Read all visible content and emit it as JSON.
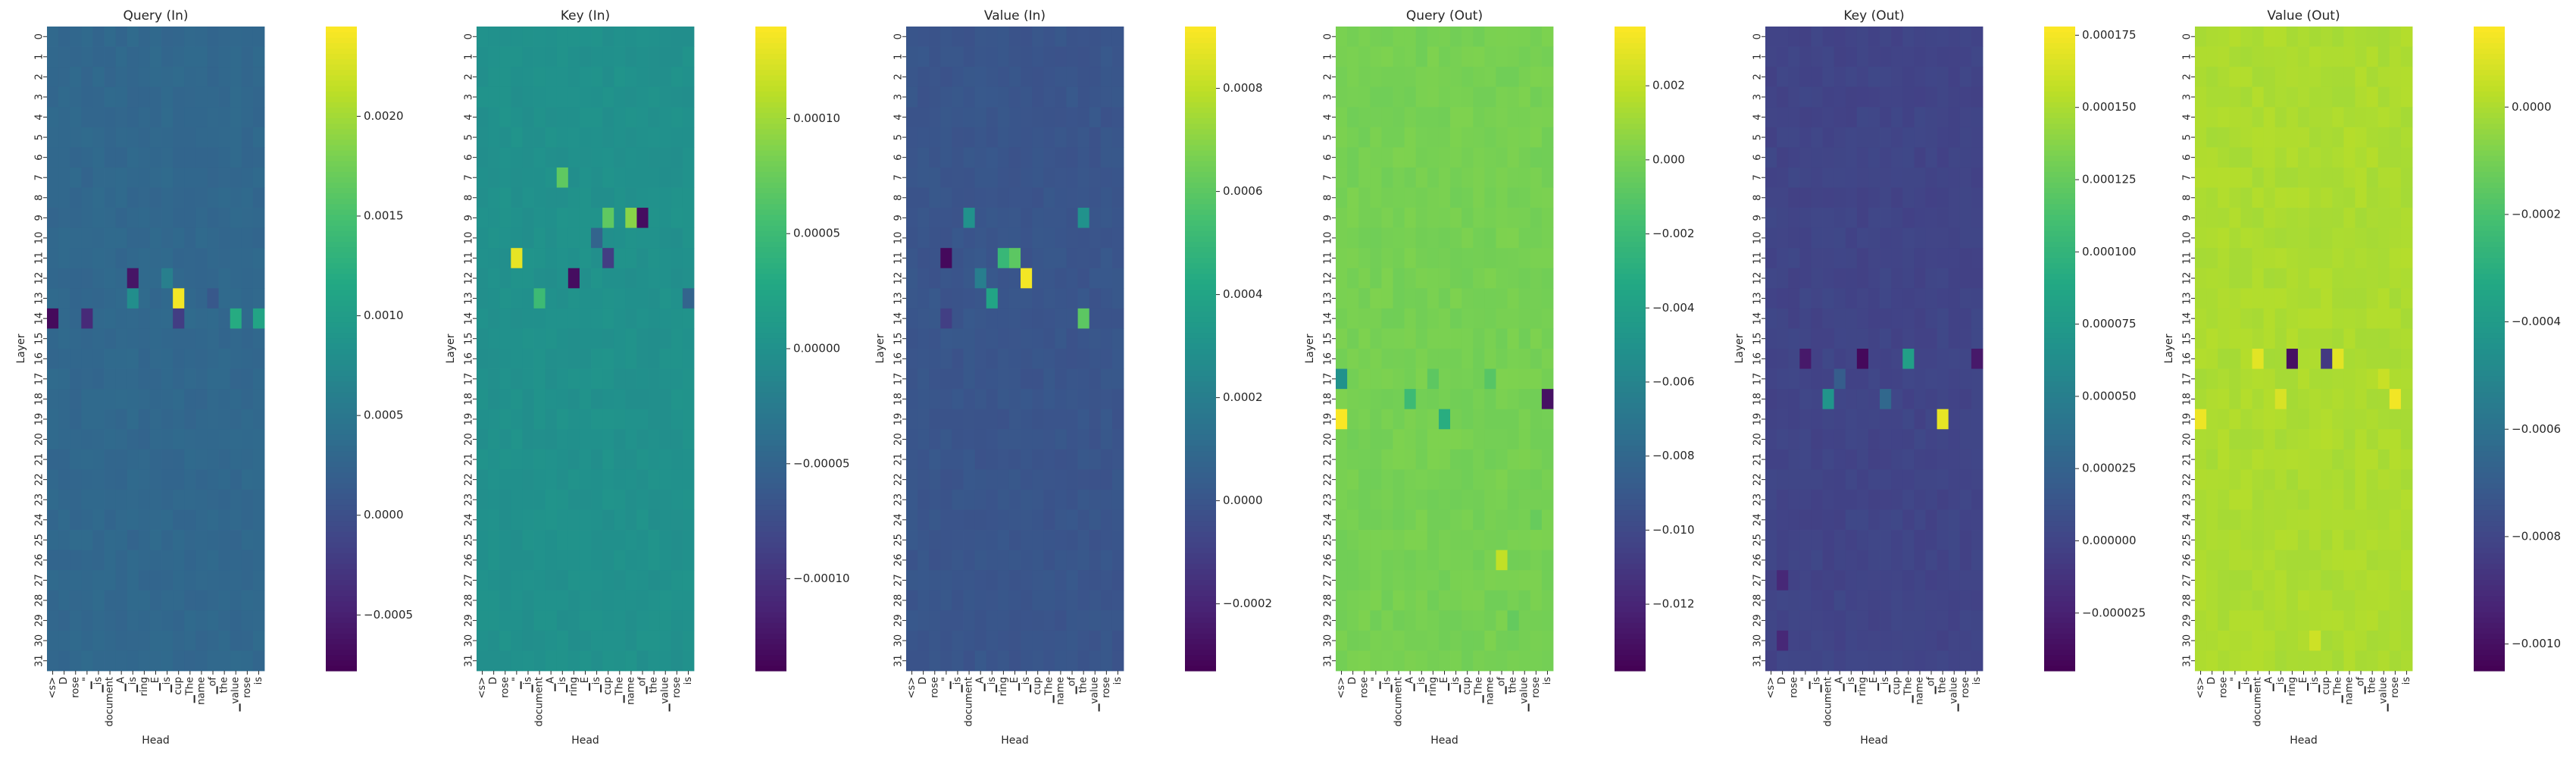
{
  "chart_data": [
    {
      "type": "heatmap",
      "title": "Query (In)",
      "xlabel": "Head",
      "ylabel": "Layer",
      "colormap": "viridis",
      "vmin": -0.00078,
      "vmax": 0.00245,
      "background_value": 0.0003,
      "colorbar_ticks": [
        -0.0005,
        0.0,
        0.0005,
        0.001,
        0.0015,
        0.002
      ],
      "colorbar_tick_labels": [
        "−0.0005",
        "0.0000",
        "0.0005",
        "0.0010",
        "0.0015",
        "0.0020"
      ],
      "hotspots": [
        {
          "layer": 14,
          "col": 0,
          "value": -0.0007
        },
        {
          "layer": 14,
          "col": 3,
          "value": -0.0004
        },
        {
          "layer": 12,
          "col": 7,
          "value": -0.0006
        },
        {
          "layer": 13,
          "col": 7,
          "value": 0.0008
        },
        {
          "layer": 13,
          "col": 11,
          "value": 0.0024
        },
        {
          "layer": 14,
          "col": 11,
          "value": -0.0002
        },
        {
          "layer": 14,
          "col": 16,
          "value": 0.0012
        },
        {
          "layer": 14,
          "col": 18,
          "value": 0.0011
        },
        {
          "layer": 12,
          "col": 10,
          "value": 0.0006
        },
        {
          "layer": 13,
          "col": 14,
          "value": 0.0001
        }
      ]
    },
    {
      "type": "heatmap",
      "title": "Key (In)",
      "xlabel": "Head",
      "ylabel": "Layer",
      "colormap": "viridis",
      "vmin": -0.00014,
      "vmax": 0.00014,
      "background_value": 0.0,
      "colorbar_ticks": [
        -0.0001,
        -5e-05,
        0.0,
        5e-05,
        0.0001
      ],
      "colorbar_tick_labels": [
        "−0.00010",
        "−0.00005",
        "0.00000",
        "0.00005",
        "0.00010"
      ],
      "hotspots": [
        {
          "layer": 11,
          "col": 3,
          "value": 0.00013
        },
        {
          "layer": 12,
          "col": 8,
          "value": -0.00013
        },
        {
          "layer": 7,
          "col": 7,
          "value": 7e-05
        },
        {
          "layer": 9,
          "col": 11,
          "value": 7e-05
        },
        {
          "layer": 9,
          "col": 14,
          "value": -0.00013
        },
        {
          "layer": 11,
          "col": 11,
          "value": -9e-05
        },
        {
          "layer": 9,
          "col": 13,
          "value": 9e-05
        },
        {
          "layer": 13,
          "col": 5,
          "value": 5e-05
        },
        {
          "layer": 10,
          "col": 10,
          "value": -5e-05
        },
        {
          "layer": 13,
          "col": 18,
          "value": -5e-05
        }
      ]
    },
    {
      "type": "heatmap",
      "title": "Value (In)",
      "xlabel": "Head",
      "ylabel": "Layer",
      "colormap": "viridis",
      "vmin": -0.00033,
      "vmax": 0.00092,
      "background_value": 0.0,
      "colorbar_ticks": [
        -0.0002,
        0.0,
        0.0002,
        0.0004,
        0.0006,
        0.0008
      ],
      "colorbar_tick_labels": [
        "−0.0002",
        "0.0000",
        "0.0002",
        "0.0004",
        "0.0006",
        "0.0008"
      ],
      "hotspots": [
        {
          "layer": 11,
          "col": 3,
          "value": -0.0003
        },
        {
          "layer": 11,
          "col": 8,
          "value": 0.0005
        },
        {
          "layer": 11,
          "col": 9,
          "value": 0.0006
        },
        {
          "layer": 12,
          "col": 10,
          "value": 0.0009
        },
        {
          "layer": 13,
          "col": 7,
          "value": 0.0004
        },
        {
          "layer": 14,
          "col": 15,
          "value": 0.0006
        },
        {
          "layer": 9,
          "col": 5,
          "value": 0.0003
        },
        {
          "layer": 9,
          "col": 15,
          "value": 0.0003
        },
        {
          "layer": 12,
          "col": 6,
          "value": 0.0002
        },
        {
          "layer": 14,
          "col": 3,
          "value": -0.0001
        }
      ]
    },
    {
      "type": "heatmap",
      "title": "Query (Out)",
      "xlabel": "Head",
      "ylabel": "Layer",
      "colormap": "viridis",
      "vmin": -0.0138,
      "vmax": 0.0036,
      "background_value": 0.0,
      "colorbar_ticks": [
        -0.012,
        -0.01,
        -0.008,
        -0.006,
        -0.004,
        -0.002,
        0.0,
        0.002
      ],
      "colorbar_tick_labels": [
        "−0.012",
        "−0.010",
        "−0.008",
        "−0.006",
        "−0.004",
        "−0.002",
        "0.000",
        "0.002"
      ],
      "hotspots": [
        {
          "layer": 17,
          "col": 0,
          "value": -0.005
        },
        {
          "layer": 19,
          "col": 0,
          "value": 0.0035
        },
        {
          "layer": 18,
          "col": 6,
          "value": -0.002
        },
        {
          "layer": 19,
          "col": 9,
          "value": -0.003
        },
        {
          "layer": 18,
          "col": 18,
          "value": -0.013
        },
        {
          "layer": 26,
          "col": 14,
          "value": 0.002
        },
        {
          "layer": 17,
          "col": 13,
          "value": -0.001
        },
        {
          "layer": 17,
          "col": 8,
          "value": -0.0008
        },
        {
          "layer": 29,
          "col": 15,
          "value": -0.0006
        },
        {
          "layer": 24,
          "col": 17,
          "value": -0.0005
        }
      ]
    },
    {
      "type": "heatmap",
      "title": "Key (Out)",
      "xlabel": "Head",
      "ylabel": "Layer",
      "colormap": "viridis",
      "vmin": -4.5e-05,
      "vmax": 0.000178,
      "background_value": 0.0,
      "colorbar_ticks": [
        -2.5e-05,
        0.0,
        2.5e-05,
        5e-05,
        7.5e-05,
        0.0001,
        0.000125,
        0.00015,
        0.000175
      ],
      "colorbar_tick_labels": [
        "−0.000025",
        "0.000000",
        "0.000025",
        "0.000050",
        "0.000075",
        "0.000100",
        "0.000125",
        "0.000150",
        "0.000175"
      ],
      "hotspots": [
        {
          "layer": 16,
          "col": 3,
          "value": -3e-05
        },
        {
          "layer": 16,
          "col": 8,
          "value": -4e-05
        },
        {
          "layer": 18,
          "col": 5,
          "value": 7e-05
        },
        {
          "layer": 16,
          "col": 12,
          "value": 8e-05
        },
        {
          "layer": 19,
          "col": 15,
          "value": 0.00017
        },
        {
          "layer": 16,
          "col": 18,
          "value": -3e-05
        },
        {
          "layer": 27,
          "col": 1,
          "value": -2e-05
        },
        {
          "layer": 30,
          "col": 1,
          "value": -2e-05
        },
        {
          "layer": 18,
          "col": 10,
          "value": 3e-05
        },
        {
          "layer": 17,
          "col": 6,
          "value": 2e-05
        }
      ]
    },
    {
      "type": "heatmap",
      "title": "Value (Out)",
      "xlabel": "Head",
      "ylabel": "Layer",
      "colormap": "viridis",
      "vmin": -0.00105,
      "vmax": 0.00015,
      "background_value": 0.0,
      "colorbar_ticks": [
        -0.001,
        -0.0008,
        -0.0006,
        -0.0004,
        -0.0002,
        0.0
      ],
      "colorbar_tick_labels": [
        "−0.0010",
        "−0.0008",
        "−0.0006",
        "−0.0004",
        "−0.0002",
        "0.0000"
      ],
      "hotspots": [
        {
          "layer": 16,
          "col": 8,
          "value": -0.001
        },
        {
          "layer": 16,
          "col": 11,
          "value": -0.00085
        },
        {
          "layer": 19,
          "col": 0,
          "value": 0.00012
        },
        {
          "layer": 16,
          "col": 5,
          "value": 0.0001
        },
        {
          "layer": 16,
          "col": 12,
          "value": 0.0001
        },
        {
          "layer": 18,
          "col": 17,
          "value": 0.00013
        },
        {
          "layer": 18,
          "col": 7,
          "value": 8e-05
        },
        {
          "layer": 30,
          "col": 10,
          "value": 6e-05
        },
        {
          "layer": 17,
          "col": 16,
          "value": 5e-05
        }
      ]
    }
  ],
  "shared_axes": {
    "layers": [
      "0",
      "1",
      "2",
      "3",
      "4",
      "5",
      "6",
      "7",
      "8",
      "9",
      "10",
      "11",
      "12",
      "13",
      "14",
      "15",
      "16",
      "17",
      "18",
      "19",
      "20",
      "21",
      "22",
      "23",
      "24",
      "25",
      "26",
      "27",
      "28",
      "29",
      "30",
      "31"
    ],
    "heads": [
      "<s>",
      "D",
      "rose",
      "▁\"",
      "▁is",
      "document",
      "▁A",
      "▁is",
      "ring",
      "▁E",
      "▁is",
      "cup",
      "▁The",
      "name",
      "▁of",
      "the",
      "▁value",
      "rose",
      "is"
    ]
  }
}
